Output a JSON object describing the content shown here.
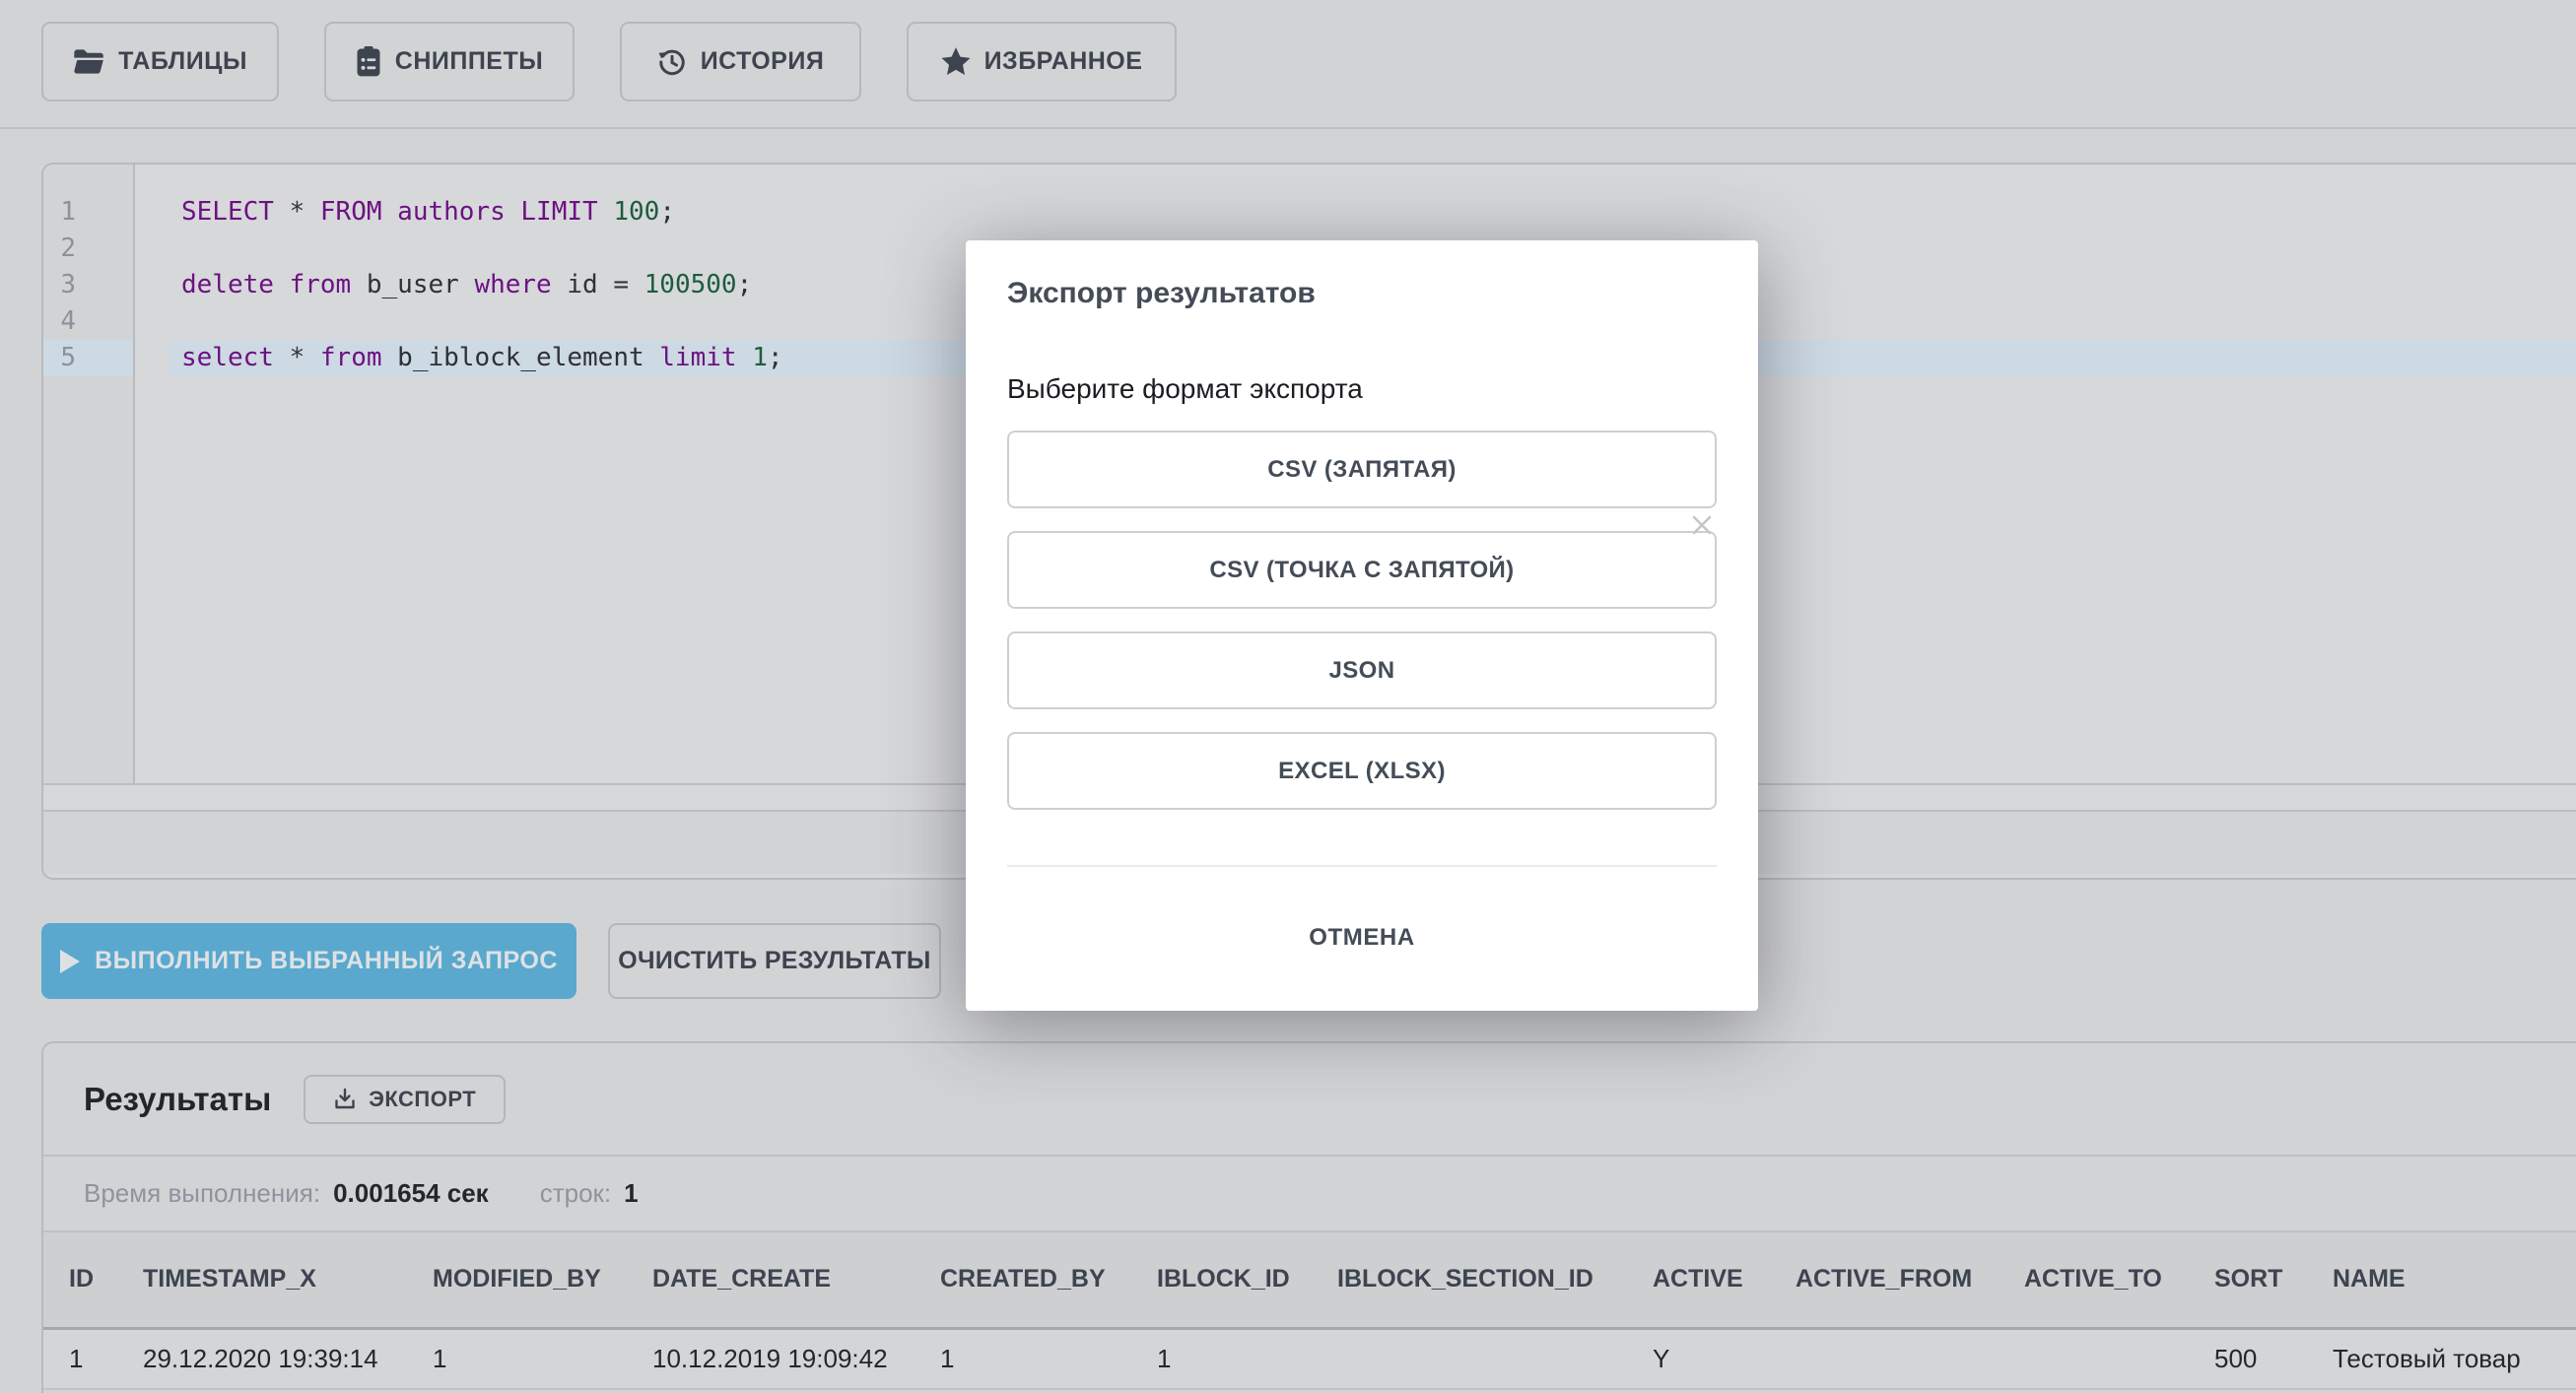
{
  "toolbar": {
    "buttons": [
      {
        "id": "tables",
        "label": "ТАБЛИЦЫ",
        "icon": "folder-icon"
      },
      {
        "id": "snippets",
        "label": "СНИППЕТЫ",
        "icon": "clipboard-list-icon"
      },
      {
        "id": "history",
        "label": "ИСТОРИЯ",
        "icon": "history-clock-icon"
      },
      {
        "id": "favorites",
        "label": "ИЗБРАННОЕ",
        "icon": "star-icon"
      }
    ]
  },
  "editor": {
    "active_line": 5,
    "lines": [
      {
        "n": "1",
        "tokens": [
          [
            "SELECT",
            "kw"
          ],
          [
            " ",
            "pl"
          ],
          [
            "*",
            "op"
          ],
          [
            " ",
            "pl"
          ],
          [
            "FROM",
            "kw"
          ],
          [
            " ",
            "pl"
          ],
          [
            "authors",
            "kw"
          ],
          [
            " ",
            "pl"
          ],
          [
            "LIMIT",
            "kw"
          ],
          [
            " ",
            "pl"
          ],
          [
            "100",
            "num"
          ],
          [
            ";",
            "pl"
          ]
        ]
      },
      {
        "n": "2",
        "tokens": []
      },
      {
        "n": "3",
        "tokens": [
          [
            "delete",
            "kw"
          ],
          [
            " ",
            "pl"
          ],
          [
            "from",
            "kw"
          ],
          [
            " ",
            "pl"
          ],
          [
            "b_user",
            "pl"
          ],
          [
            " ",
            "pl"
          ],
          [
            "where",
            "kw"
          ],
          [
            " ",
            "pl"
          ],
          [
            "id",
            "pl"
          ],
          [
            " ",
            "pl"
          ],
          [
            "=",
            "op"
          ],
          [
            " ",
            "pl"
          ],
          [
            "100500",
            "num"
          ],
          [
            ";",
            "pl"
          ]
        ]
      },
      {
        "n": "4",
        "tokens": []
      },
      {
        "n": "5",
        "tokens": [
          [
            "select",
            "kw"
          ],
          [
            " ",
            "pl"
          ],
          [
            "*",
            "op"
          ],
          [
            " ",
            "pl"
          ],
          [
            "from",
            "kw"
          ],
          [
            " ",
            "pl"
          ],
          [
            "b_iblock_element",
            "pl"
          ],
          [
            " ",
            "pl"
          ],
          [
            "limit",
            "kw"
          ],
          [
            " ",
            "pl"
          ],
          [
            "1",
            "num"
          ],
          [
            ";",
            "pl"
          ]
        ]
      }
    ]
  },
  "actions": {
    "execute": {
      "label": "ВЫПОЛНИТЬ ВЫБРАННЫЙ ЗАПРОС",
      "icon": "play-icon"
    },
    "clear": {
      "label": "ОЧИСТИТЬ РЕЗУЛЬТАТЫ"
    }
  },
  "results": {
    "title": "Результаты",
    "export_button": {
      "label": "ЭКСПОРТ",
      "icon": "download-icon"
    },
    "stats": {
      "time_label": "Время выполнения:",
      "time_value": "0.001654 сек",
      "rows_label": "строк:",
      "rows_value": "1"
    },
    "table": {
      "headers": [
        "ID",
        "TIMESTAMP_X",
        "MODIFIED_BY",
        "DATE_CREATE",
        "CREATED_BY",
        "IBLOCK_ID",
        "IBLOCK_SECTION_ID",
        "ACTIVE",
        "ACTIVE_FROM",
        "ACTIVE_TO",
        "SORT",
        "NAME"
      ],
      "rows": [
        [
          "1",
          "29.12.2020 19:39:14",
          "1",
          "10.12.2019 19:09:42",
          "1",
          "1",
          "",
          "Y",
          "",
          "",
          "500",
          "Тестовый товар"
        ]
      ]
    }
  },
  "modal": {
    "title": "Экспорт результатов",
    "close_icon": "close-icon",
    "prompt": "Выберите формат экспорта",
    "format_buttons": [
      "CSV (ЗАПЯТАЯ)",
      "CSV (ТОЧКА С ЗАПЯТОЙ)",
      "JSON",
      "EXCEL (XLSX)"
    ],
    "cancel_label": "ОТМЕНА"
  },
  "colors": {
    "accent_blue": "#5aa8ce",
    "syntax_keyword": "#6c1282",
    "syntax_number": "#1d5c3e",
    "active_line_highlight": "#cdd9e3",
    "page_background": "#d2d3d5",
    "modal_background": "#ffffff"
  }
}
